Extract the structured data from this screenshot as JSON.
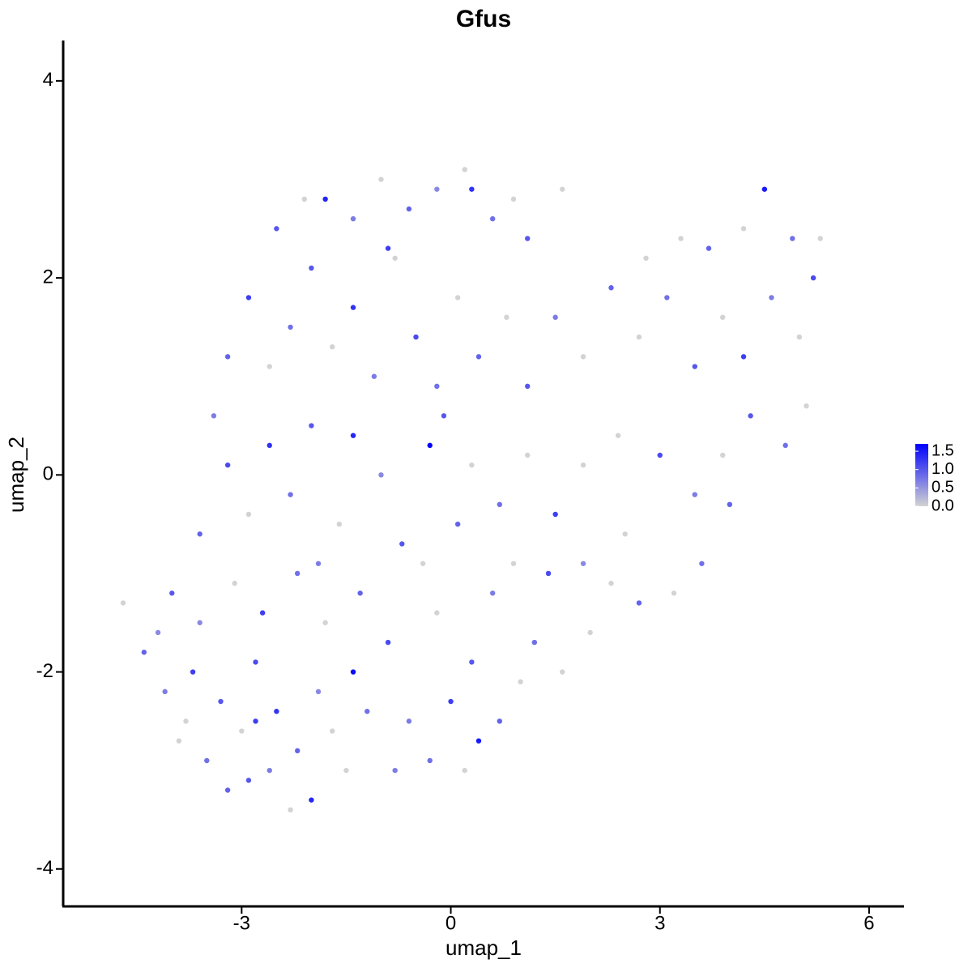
{
  "chart_data": {
    "type": "scatter",
    "title": "Gfus",
    "x_label": "umap_1",
    "y_label": "umap_2",
    "xlim": [
      -5.56,
      6.5
    ],
    "ylim": [
      -4.38,
      4.41
    ],
    "xticks": [
      -3,
      0,
      3,
      6
    ],
    "yticks": [
      -4,
      -2,
      0,
      2,
      4
    ],
    "colors": [
      "#d3d3d3",
      "#0000ff"
    ],
    "clim": [
      0,
      1.7
    ],
    "cticks": [
      {
        "value": 0,
        "label": "0.0"
      },
      {
        "value": 0.5,
        "label": "0.5"
      },
      {
        "value": 1,
        "label": "1.0"
      },
      {
        "value": 1.5,
        "label": "1.5"
      }
    ],
    "x": [
      -4.7,
      -4.4,
      -4.1,
      -3.9,
      -3.7,
      -3.5,
      -3.3,
      -3.2,
      -3.0,
      -2.8,
      -2.6,
      -2.5,
      -2.3,
      -2.2,
      -2.0,
      -1.9,
      -1.7,
      -1.4,
      -1.5,
      -4.0,
      -3.6,
      -3.1,
      -2.7,
      -2.2,
      -1.8,
      -1.3,
      -0.9,
      -0.6,
      -0.3,
      0,
      0.2,
      0.4,
      0.7,
      1.0,
      1.2,
      1.6,
      0.3,
      -0.2,
      0.6,
      1.4,
      1.9,
      2.3,
      2.7,
      3.2,
      3.6,
      2.5,
      2.0,
      -3.6,
      -3.2,
      -3.4,
      -2.9,
      -2.6,
      -2.3,
      -2.0,
      -1.6,
      -1.4,
      -1.0,
      -0.7,
      -0.3,
      0.1,
      0.3,
      0.7,
      1.1,
      1.5,
      1.9,
      2.4,
      3.0,
      3.5,
      3.9,
      4.3,
      4.8,
      5.1,
      -3.2,
      -2.9,
      -2.6,
      -2.3,
      -2.0,
      -1.7,
      -1.4,
      -1.1,
      -0.8,
      -0.5,
      -0.2,
      0.1,
      0.4,
      0.8,
      1.1,
      1.5,
      1.9,
      2.3,
      2.7,
      3.1,
      3.5,
      3.9,
      4.2,
      4.6,
      5.0,
      5.2,
      4.9,
      4.5,
      4.2,
      3.7,
      3.3,
      2.8,
      -2.5,
      -2.1,
      -1.8,
      -1.4,
      -1.0,
      -0.6,
      -0.2,
      0.2,
      0.3,
      0.6,
      0.9,
      1.1,
      1.6,
      -0.9,
      -0.4,
      -1.2,
      -0.8,
      -2.9,
      -3.8,
      -4.2,
      5.3,
      4.0,
      0.9,
      -0.1,
      -1.9,
      -2.8
    ],
    "y": [
      -1.3,
      -1.8,
      -2.2,
      -2.7,
      -2.0,
      -2.9,
      -2.3,
      -3.2,
      -2.6,
      -1.9,
      -3.0,
      -2.4,
      -3.4,
      -2.8,
      -3.3,
      -2.2,
      -2.6,
      -2.0,
      -3.0,
      -1.2,
      -1.5,
      -1.1,
      -1.4,
      -1.0,
      -1.5,
      -1.2,
      -1.7,
      -2.5,
      -2.9,
      -2.3,
      -3.0,
      -2.7,
      -2.5,
      -2.1,
      -1.7,
      -2.0,
      -1.9,
      -1.4,
      -1.2,
      -1.0,
      -0.9,
      -1.1,
      -1.3,
      -1.2,
      -0.9,
      -0.6,
      -1.6,
      -0.6,
      0.1,
      0.6,
      -0.4,
      0.3,
      -0.2,
      0.5,
      -0.5,
      0.4,
      0,
      -0.7,
      0.3,
      -0.5,
      0.1,
      -0.3,
      0.2,
      -0.4,
      0.1,
      0.4,
      0.2,
      -0.2,
      0.2,
      0.6,
      0.3,
      0.7,
      1.2,
      1.8,
      1.1,
      1.5,
      2.1,
      1.3,
      1.7,
      1.0,
      2.2,
      1.4,
      0.9,
      1.8,
      1.2,
      1.6,
      0.9,
      1.6,
      1.2,
      1.9,
      1.4,
      1.8,
      1.1,
      1.6,
      1.2,
      1.8,
      1.4,
      2.0,
      2.4,
      2.9,
      2.5,
      2.3,
      2.4,
      2.2,
      2.5,
      2.8,
      2.8,
      2.6,
      3.0,
      2.7,
      2.9,
      3.1,
      2.9,
      2.6,
      2.8,
      2.4,
      2.9,
      2.3,
      -0.9,
      -2.4,
      -3.0,
      -3.1,
      -2.5,
      -1.6,
      2.4,
      -0.3,
      -0.9,
      0.6,
      -0.9,
      -2.5
    ],
    "values": [
      0,
      0.9,
      0.7,
      0,
      1.2,
      0.8,
      1.0,
      0.9,
      0,
      1.1,
      0.7,
      1.3,
      0,
      0.9,
      1.4,
      0.6,
      0,
      1.6,
      0,
      1.0,
      0.6,
      0,
      1.2,
      0.8,
      0,
      0.9,
      1.1,
      0.7,
      0.8,
      1.2,
      0,
      1.5,
      0.9,
      0,
      0.8,
      0,
      1.0,
      0,
      0.7,
      1.1,
      0.6,
      0,
      0.9,
      0,
      0.8,
      0,
      0,
      0.9,
      1.1,
      0.7,
      0,
      1.3,
      0.8,
      1.0,
      0,
      1.4,
      0.6,
      1.0,
      1.7,
      0.9,
      0,
      0.8,
      0,
      1.2,
      0,
      0,
      1.1,
      0.7,
      0,
      1.0,
      0.8,
      0,
      0.9,
      1.2,
      0,
      0.8,
      1.0,
      0,
      1.3,
      0.7,
      0,
      1.1,
      0.8,
      0,
      0.9,
      0,
      1.0,
      0.7,
      0,
      0.9,
      0,
      0.8,
      1.0,
      0,
      1.2,
      0.7,
      0,
      1.1,
      0.8,
      1.5,
      0,
      0.9,
      0,
      0,
      1.0,
      0,
      1.4,
      0.7,
      0,
      0.9,
      0.6,
      0,
      1.3,
      0.8,
      0,
      1.0,
      0,
      1.2,
      0,
      0.8,
      0.7,
      1.0,
      0,
      0.6,
      0,
      0.9,
      0,
      1.0,
      0.7,
      1.2
    ]
  }
}
